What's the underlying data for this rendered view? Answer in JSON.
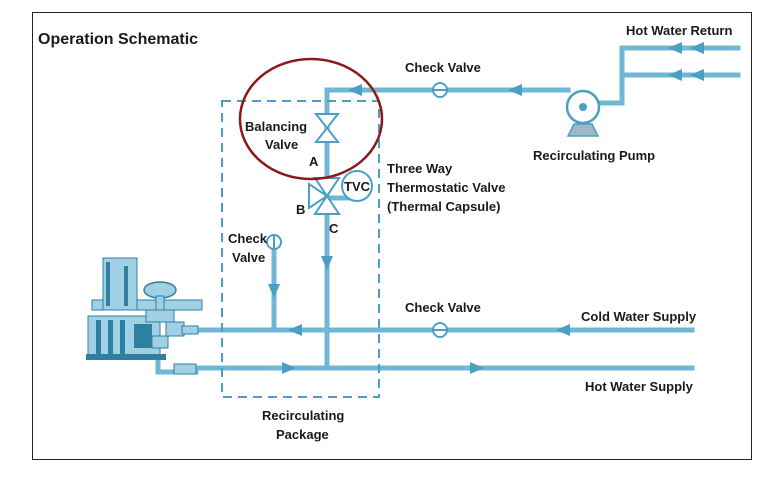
{
  "title": "Operation Schematic",
  "labels": {
    "hot_water_return": "Hot Water Return",
    "check_valve_top": "Check Valve",
    "recirculating_pump": "Recirculating Pump",
    "balancing_valve_1": "Balancing",
    "balancing_valve_2": "Valve",
    "port_a": "A",
    "port_b": "B",
    "port_c": "C",
    "tvc": "TVC",
    "three_way_1": "Three Way",
    "three_way_2": "Thermostatic Valve",
    "three_way_3": "(Thermal Capsule)",
    "check_valve_side_1": "Check",
    "check_valve_side_2": "Valve",
    "check_valve_middle": "Check Valve",
    "cold_water_supply": "Cold Water Supply",
    "hot_water_supply": "Hot Water Supply",
    "package_1": "Recirculating",
    "package_2": "Package"
  },
  "colors": {
    "pipe": "#6fb7d4",
    "arrow": "#4a9fc4",
    "highlight": "#8b1a1a",
    "package_border": "#4a9fc4",
    "heater_body": "#9fd0e3",
    "heater_dark": "#2f7fa3"
  }
}
